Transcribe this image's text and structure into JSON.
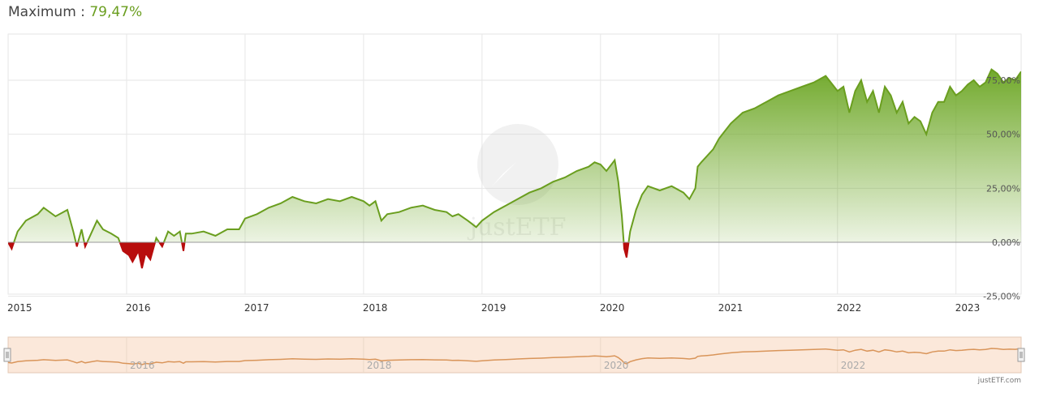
{
  "headline": {
    "label": "Maximum : ",
    "value": "79,47%"
  },
  "colors": {
    "positive_line": "#6a9e1f",
    "negative": "#b80d0d",
    "navigator_line": "#d9955a",
    "navigator_fill": "#fbe8da"
  },
  "credit": "justETF.com",
  "watermark": "justETF",
  "chart_data": {
    "type": "area",
    "title": "",
    "xlabel": "",
    "ylabel": "",
    "ylim": [
      -25,
      79.47
    ],
    "y_ticks": [
      "75,00%",
      "50,00%",
      "25,00%",
      "0,00%",
      "-25,00%"
    ],
    "y_tick_values": [
      75,
      50,
      25,
      0,
      -25
    ],
    "x_ticks": [
      "2015",
      "2016",
      "2017",
      "2018",
      "2019",
      "2020",
      "2021",
      "2022",
      "2023"
    ],
    "x_tick_values": [
      2015.0,
      2016.0,
      2017.0,
      2018.0,
      2019.0,
      2020.0,
      2021.0,
      2022.0,
      2023.0
    ],
    "xlim": [
      2015.0,
      2023.55
    ],
    "grid": true,
    "series": [
      {
        "x": [
          2015.0,
          2015.03,
          2015.08,
          2015.15,
          2015.25,
          2015.3,
          2015.4,
          2015.5,
          2015.55,
          2015.58,
          2015.62,
          2015.65,
          2015.7,
          2015.75,
          2015.8,
          2015.87,
          2015.93,
          2015.97,
          2016.02,
          2016.05,
          2016.1,
          2016.13,
          2016.16,
          2016.2,
          2016.25,
          2016.3,
          2016.35,
          2016.4,
          2016.45,
          2016.48,
          2016.5,
          2016.55,
          2016.65,
          2016.75,
          2016.85,
          2016.95,
          2017.0,
          2017.1,
          2017.2,
          2017.3,
          2017.4,
          2017.5,
          2017.6,
          2017.7,
          2017.8,
          2017.9,
          2018.0,
          2018.05,
          2018.1,
          2018.15,
          2018.2,
          2018.3,
          2018.4,
          2018.5,
          2018.6,
          2018.7,
          2018.75,
          2018.8,
          2018.88,
          2018.95,
          2019.0,
          2019.1,
          2019.2,
          2019.3,
          2019.4,
          2019.5,
          2019.6,
          2019.7,
          2019.8,
          2019.9,
          2019.95,
          2020.0,
          2020.05,
          2020.12,
          2020.15,
          2020.18,
          2020.2,
          2020.22,
          2020.25,
          2020.3,
          2020.35,
          2020.4,
          2020.5,
          2020.6,
          2020.7,
          2020.75,
          2020.8,
          2020.82,
          2020.85,
          2020.9,
          2020.95,
          2021.0,
          2021.1,
          2021.2,
          2021.3,
          2021.4,
          2021.5,
          2021.6,
          2021.7,
          2021.8,
          2021.9,
          2022.0,
          2022.05,
          2022.1,
          2022.15,
          2022.2,
          2022.25,
          2022.3,
          2022.35,
          2022.4,
          2022.45,
          2022.5,
          2022.55,
          2022.6,
          2022.65,
          2022.7,
          2022.75,
          2022.8,
          2022.85,
          2022.9,
          2022.95,
          2023.0,
          2023.05,
          2023.1,
          2023.15,
          2023.2,
          2023.25,
          2023.3,
          2023.35,
          2023.4,
          2023.45,
          2023.5,
          2023.55
        ],
        "y": [
          0,
          -3,
          5,
          10,
          13,
          16,
          12,
          15,
          5,
          -2,
          6,
          -2,
          4,
          10,
          6,
          4,
          2,
          -4,
          -6,
          -9,
          -4,
          -12,
          -5,
          -8,
          2,
          -2,
          5,
          3,
          5,
          -4,
          4,
          4,
          5,
          3,
          6,
          6,
          11,
          13,
          16,
          18,
          21,
          19,
          18,
          20,
          19,
          21,
          19,
          17,
          19,
          10,
          13,
          14,
          16,
          17,
          15,
          14,
          12,
          13,
          10,
          7,
          10,
          14,
          17,
          20,
          23,
          25,
          28,
          30,
          33,
          35,
          37,
          36,
          33,
          38,
          28,
          12,
          -3,
          -7,
          5,
          15,
          22,
          26,
          24,
          26,
          23,
          20,
          25,
          35,
          37,
          40,
          43,
          48,
          55,
          60,
          62,
          65,
          68,
          70,
          72,
          74,
          77,
          70,
          72,
          60,
          70,
          75,
          65,
          70,
          60,
          72,
          68,
          60,
          65,
          55,
          58,
          56,
          50,
          60,
          65,
          65,
          72,
          68,
          70,
          73,
          75,
          72,
          74,
          80,
          78,
          74,
          76,
          75,
          79
        ]
      }
    ],
    "navigator": {
      "x_ticks": [
        "2016",
        "2018",
        "2020",
        "2022"
      ],
      "x_tick_values": [
        2016,
        2018,
        2020,
        2022
      ]
    }
  }
}
